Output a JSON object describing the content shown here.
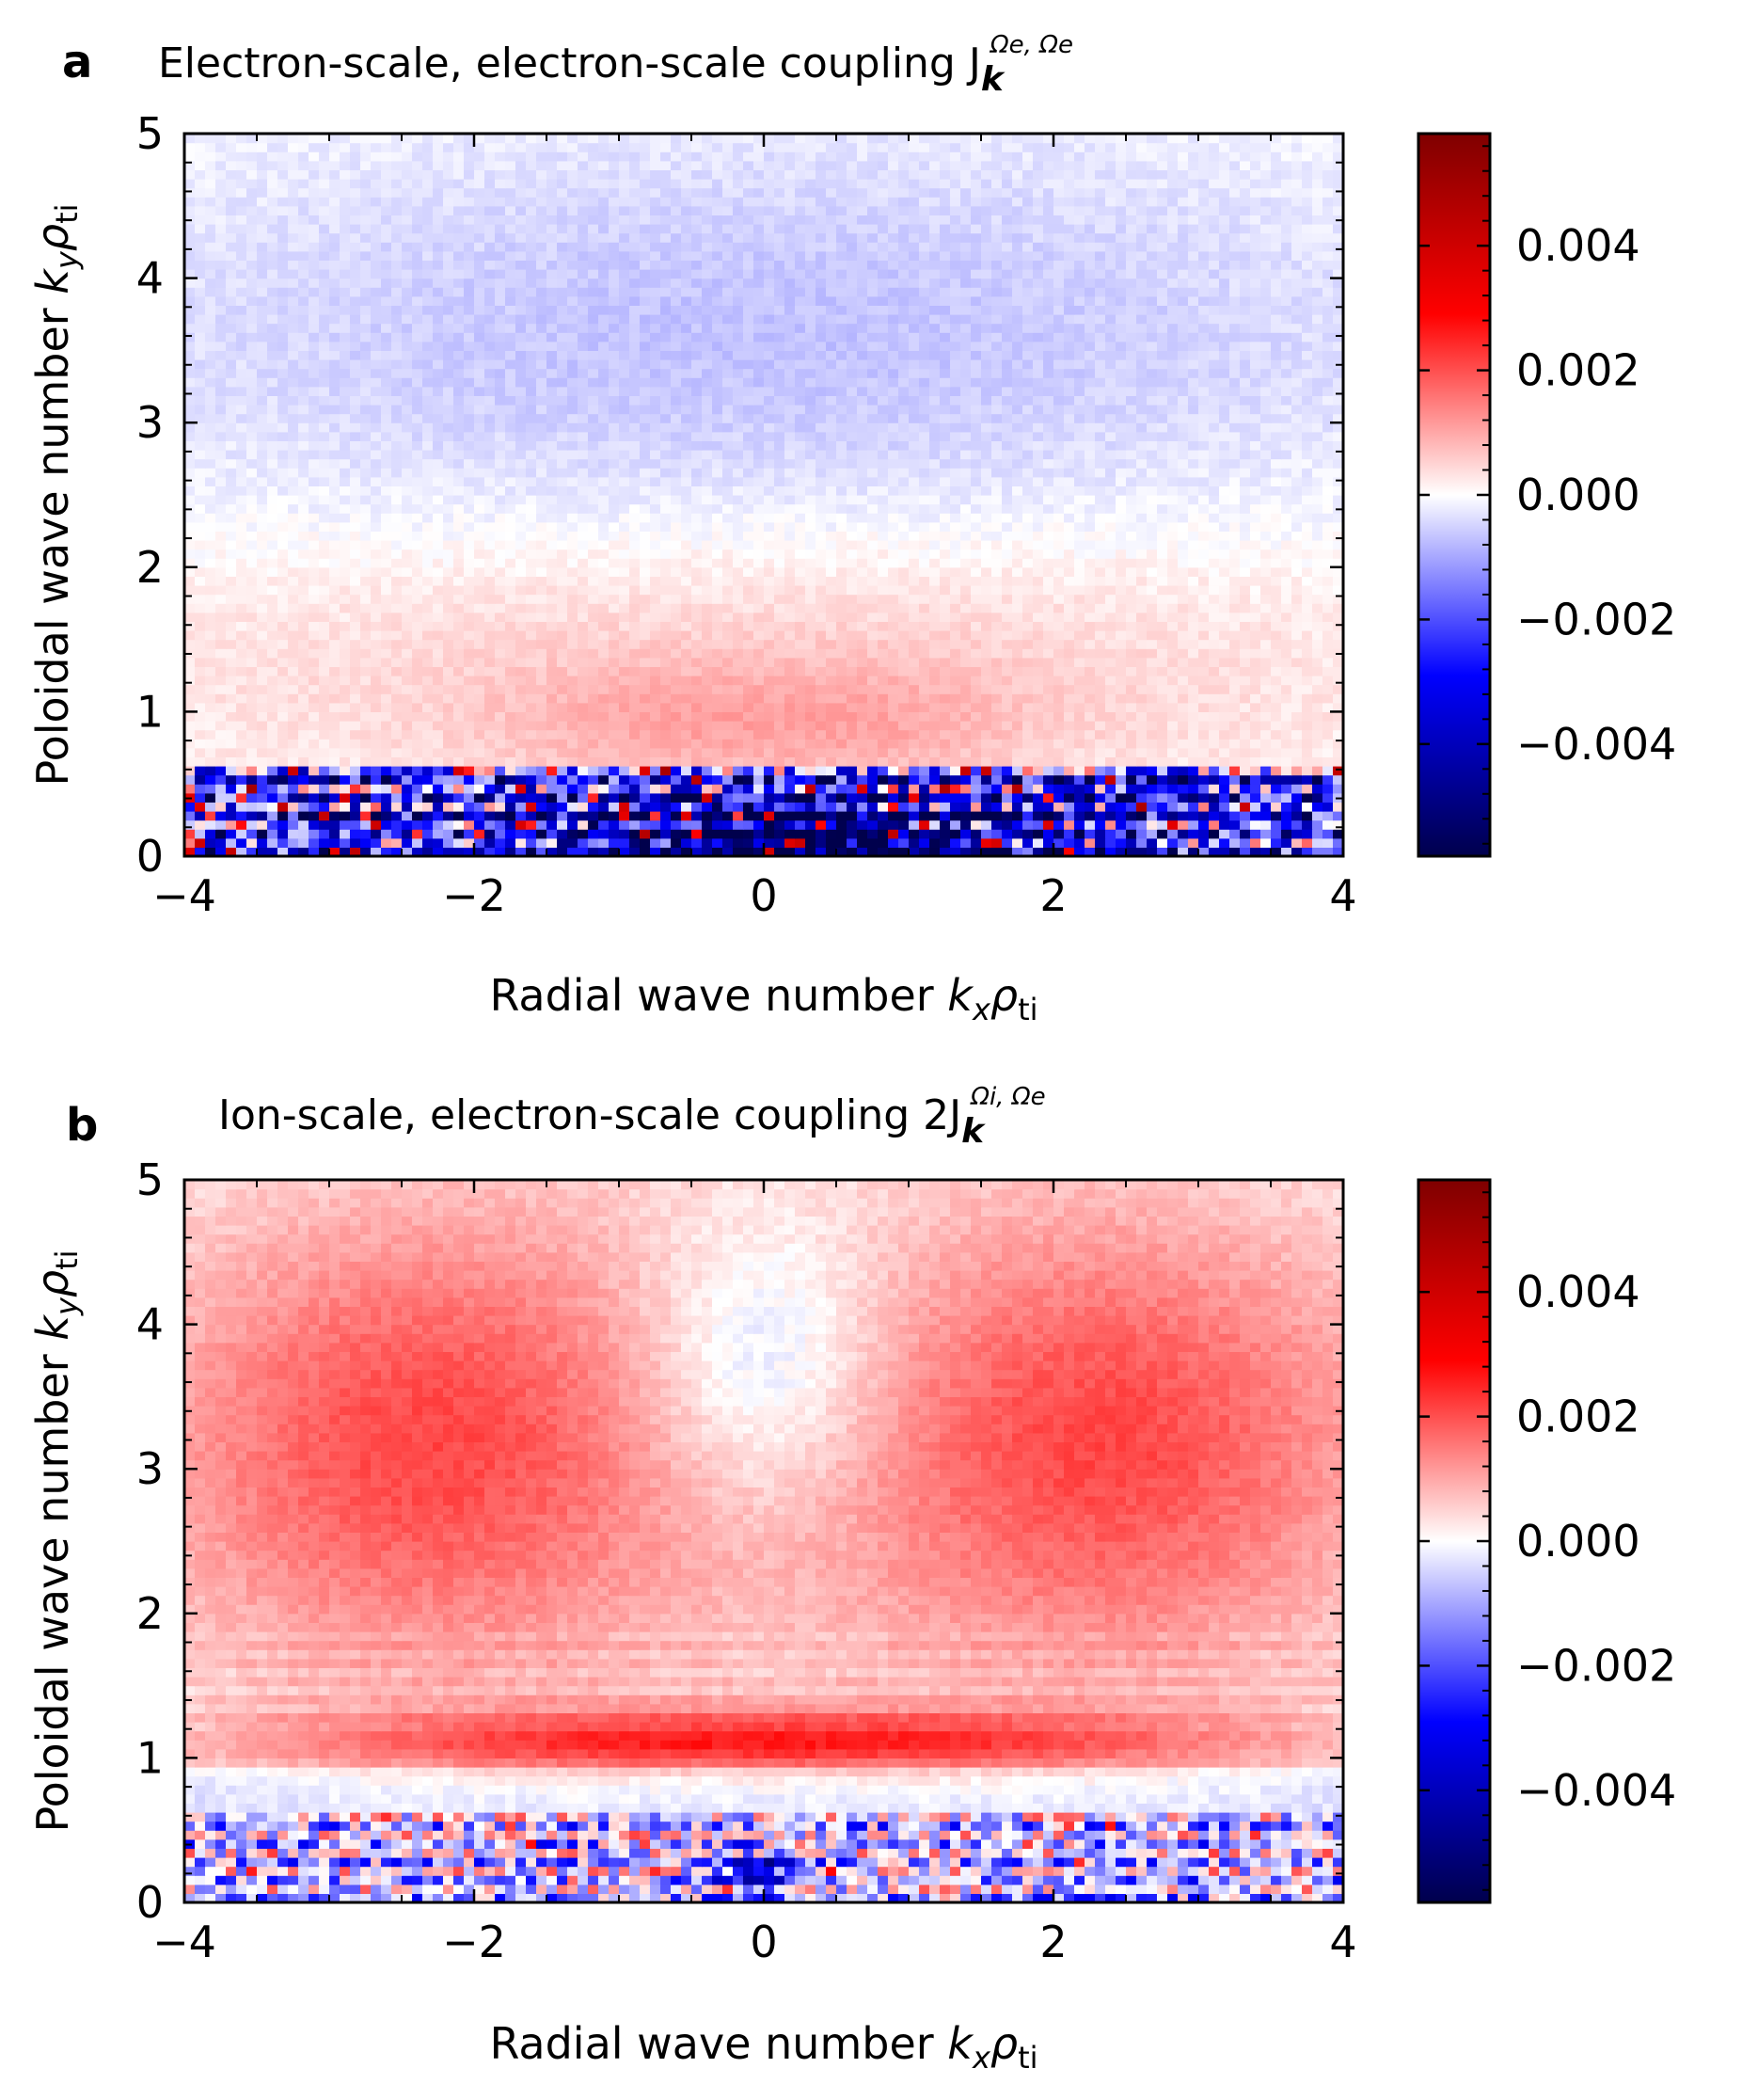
{
  "colors": {
    "cmap_low": "#00004c",
    "cmap_mid_low": "#0000ff",
    "cmap_center": "#ffffff",
    "cmap_mid_high": "#ff0000",
    "cmap_high": "#7f0000"
  },
  "chart_data": [
    {
      "type": "heatmap",
      "panel_letter": "a",
      "title": "Electron-scale, electron-scale coupling J",
      "title_symbol_sub": "k",
      "title_symbol_sup": "Ωe, Ωe",
      "xlabel": "Radial wave number kxρti",
      "xlabel_main": "Radial wave number ",
      "ylabel": "Poloidal wave number kyρti",
      "ylabel_main": "Poloidal wave number ",
      "xlim": [
        -4,
        4
      ],
      "ylim": [
        0,
        5
      ],
      "xticks": [
        -4,
        -2,
        0,
        2,
        4
      ],
      "xtick_labels": [
        "−4",
        "−2",
        "0",
        "2",
        "4"
      ],
      "yticks": [
        0,
        1,
        2,
        3,
        4,
        5
      ],
      "ytick_labels": [
        "0",
        "1",
        "2",
        "3",
        "4",
        "5"
      ],
      "colorbar": {
        "vmin": -0.0058,
        "vmax": 0.0058,
        "ticks": [
          0.004,
          0.002,
          0.0,
          -0.002,
          -0.004
        ],
        "tick_labels": [
          "0.004",
          "0.002",
          "0.000",
          "−0.002",
          "−0.004"
        ]
      },
      "features": [
        {
          "description": "weak negative region",
          "kx_center": 0.0,
          "ky_center": 3.6,
          "value": -0.0006
        },
        {
          "description": "weak positive band",
          "ky_range": [
            0.7,
            2.2
          ],
          "value": 0.0006
        },
        {
          "description": "strong negative low-ky noise",
          "ky_range": [
            0.0,
            0.6
          ],
          "value": -0.004
        },
        {
          "description": "strongest negative near kx=0",
          "kx_center": 0.0,
          "ky_center": 0.15,
          "value": -0.0058
        }
      ]
    },
    {
      "type": "heatmap",
      "panel_letter": "b",
      "title": "Ion-scale, electron-scale coupling 2J",
      "title_symbol_sub": "k",
      "title_symbol_sup": "Ωi, Ωe",
      "xlabel": "Radial wave number kxρti",
      "xlabel_main": "Radial wave number ",
      "ylabel": "Poloidal wave number kyρti",
      "ylabel_main": "Poloidal wave number ",
      "xlim": [
        -4,
        4
      ],
      "ylim": [
        0,
        5
      ],
      "xticks": [
        -4,
        -2,
        0,
        2,
        4
      ],
      "xtick_labels": [
        "−4",
        "−2",
        "0",
        "2",
        "4"
      ],
      "yticks": [
        0,
        1,
        2,
        3,
        4,
        5
      ],
      "ytick_labels": [
        "0",
        "1",
        "2",
        "3",
        "4",
        "5"
      ],
      "colorbar": {
        "vmin": -0.0058,
        "vmax": 0.0058,
        "ticks": [
          0.004,
          0.002,
          0.0,
          -0.002,
          -0.004
        ],
        "tick_labels": [
          "0.004",
          "0.002",
          "0.000",
          "−0.002",
          "−0.004"
        ]
      },
      "features": [
        {
          "description": "positive lobe left",
          "kx_center": -2.4,
          "ky_center": 3.2,
          "value": 0.0015
        },
        {
          "description": "positive lobe right",
          "kx_center": 2.4,
          "ky_center": 3.2,
          "value": 0.0015
        },
        {
          "description": "weak negative center",
          "kx_center": 0.0,
          "ky_center": 3.7,
          "value": -0.0005
        },
        {
          "description": "positive band",
          "ky_center": 1.1,
          "kx_range": [
            -2,
            2
          ],
          "value": 0.0022
        },
        {
          "description": "mixed low-ky noise",
          "ky_range": [
            0.0,
            0.6
          ],
          "value": -0.002
        }
      ]
    }
  ]
}
